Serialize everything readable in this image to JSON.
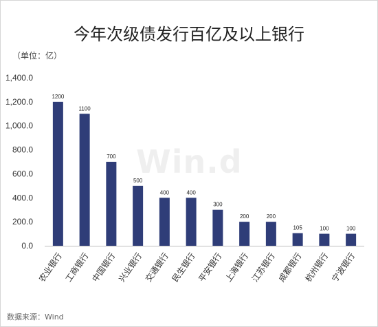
{
  "chart_data": {
    "type": "bar",
    "title": "今年次级债发行百亿及以上银行",
    "unit_label": "（单位：亿）",
    "source_label": "数据来源：Wind",
    "watermark": "Win.d",
    "categories": [
      "农业银行",
      "工商银行",
      "中国银行",
      "兴业银行",
      "交通银行",
      "民生银行",
      "平安银行",
      "上海银行",
      "江苏银行",
      "成都银行",
      "杭州银行",
      "宁波银行"
    ],
    "values": [
      1200,
      1100,
      700,
      500,
      400,
      400,
      300,
      200,
      200,
      105,
      100,
      100
    ],
    "data_labels": [
      "1200",
      "1100",
      "700",
      "500",
      "400",
      "400",
      "300",
      "200",
      "200",
      "105",
      "100",
      "100"
    ],
    "y_ticks": [
      0,
      200,
      400,
      600,
      800,
      1000,
      1200,
      1400
    ],
    "y_tick_labels": [
      "0.0",
      "200.0",
      "400.0",
      "600.0",
      "800.0",
      "1,000.0",
      "1,200.0",
      "1,400.0"
    ],
    "ylim": [
      0,
      1400
    ],
    "bar_color": "#2f3d78",
    "grid": false,
    "legend": "none"
  }
}
